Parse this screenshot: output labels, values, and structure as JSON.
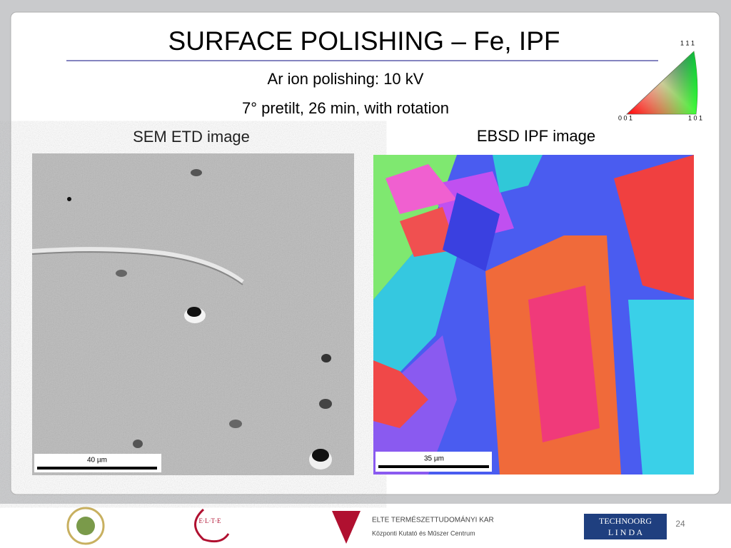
{
  "slide": {
    "title": "SURFACE POLISHING – Fe, IPF",
    "subtitle_lines": [
      "Ar ion polishing: 10 kV",
      "7° pretilt, 26 min, with rotation"
    ],
    "panels": [
      {
        "caption": "SEM ETD image",
        "scale_bar": "40 µm"
      },
      {
        "caption": "EBSD IPF image",
        "scale_bar": "35 µm"
      }
    ],
    "ipf_legend": {
      "labels": [
        "1 1 1",
        "0 0 1",
        "1 0 1"
      ]
    }
  },
  "footer": {
    "elte_logo": "E·L·T·E",
    "ttk_name": "ELTE TERMÉSZETTUDOMÁNYI KAR",
    "ttk_subname": "Központi Kutató és Műszer Centrum",
    "technoorg": "TECHNOORG",
    "linda": "L I N D A",
    "page_number": "24"
  }
}
